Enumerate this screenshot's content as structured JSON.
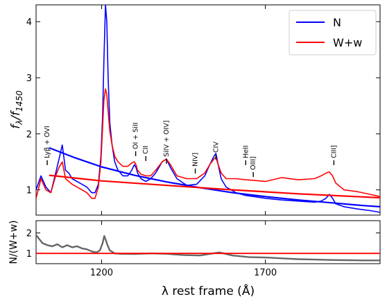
{
  "chart_data": [
    {
      "type": "line",
      "panel": "top",
      "title": "",
      "xlabel": "",
      "ylabel": "f_λ/f_1450",
      "ylabel_main": "f",
      "ylabel_sub1": "λ",
      "ylabel_slash": "/f",
      "ylabel_sub2": "1450",
      "xlim": [
        1000,
        2050
      ],
      "ylim": [
        0.55,
        4.3
      ],
      "x_ticks": [
        1200,
        1700
      ],
      "y_ticks": [
        1,
        2,
        3,
        4
      ],
      "y_tick_labels": [
        "1",
        "2",
        "3",
        "4"
      ],
      "grid": false,
      "legend_position": "top-right",
      "series": [
        {
          "name": "N",
          "color": "#0000ff",
          "x": [
            1000,
            1015,
            1030,
            1045,
            1060,
            1070,
            1080,
            1090,
            1100,
            1110,
            1125,
            1140,
            1155,
            1170,
            1180,
            1190,
            1198,
            1203,
            1207,
            1212,
            1216,
            1220,
            1225,
            1232,
            1240,
            1250,
            1265,
            1280,
            1292,
            1300,
            1305,
            1310,
            1320,
            1335,
            1350,
            1365,
            1385,
            1398,
            1410,
            1430,
            1460,
            1490,
            1515,
            1530,
            1543,
            1549,
            1556,
            1565,
            1580,
            1610,
            1640,
            1665,
            1700,
            1750,
            1800,
            1850,
            1870,
            1885,
            1895,
            1905,
            1915,
            1940,
            1980,
            2020,
            2050
          ],
          "y": [
            1.0,
            1.25,
            1.05,
            0.95,
            1.3,
            1.55,
            1.8,
            1.35,
            1.3,
            1.2,
            1.15,
            1.1,
            1.05,
            0.95,
            0.95,
            1.1,
            1.6,
            2.3,
            3.3,
            4.3,
            4.0,
            3.0,
            2.2,
            1.8,
            1.5,
            1.35,
            1.25,
            1.25,
            1.35,
            1.45,
            1.4,
            1.3,
            1.2,
            1.15,
            1.2,
            1.3,
            1.5,
            1.55,
            1.4,
            1.2,
            1.08,
            1.1,
            1.25,
            1.45,
            1.6,
            1.65,
            1.45,
            1.2,
            1.05,
            0.95,
            0.9,
            0.88,
            0.85,
            0.82,
            0.8,
            0.78,
            0.8,
            0.85,
            0.92,
            0.85,
            0.75,
            0.7,
            0.66,
            0.63,
            0.6
          ]
        },
        {
          "name": "W+w",
          "color": "#ff0000",
          "x": [
            1000,
            1015,
            1030,
            1045,
            1060,
            1070,
            1080,
            1090,
            1100,
            1110,
            1125,
            1140,
            1155,
            1170,
            1180,
            1190,
            1198,
            1203,
            1207,
            1212,
            1216,
            1220,
            1225,
            1232,
            1240,
            1250,
            1265,
            1280,
            1292,
            1300,
            1305,
            1310,
            1320,
            1335,
            1350,
            1365,
            1385,
            1398,
            1410,
            1430,
            1460,
            1490,
            1515,
            1530,
            1543,
            1549,
            1556,
            1565,
            1580,
            1610,
            1640,
            1665,
            1700,
            1750,
            1800,
            1850,
            1870,
            1885,
            1895,
            1905,
            1915,
            1940,
            1980,
            2020,
            2050
          ],
          "y": [
            0.85,
            1.2,
            1.0,
            0.95,
            1.25,
            1.4,
            1.5,
            1.2,
            1.15,
            1.1,
            1.05,
            1.0,
            0.95,
            0.85,
            0.85,
            1.05,
            1.5,
            2.1,
            2.6,
            2.8,
            2.7,
            2.4,
            2.05,
            1.8,
            1.6,
            1.5,
            1.42,
            1.42,
            1.48,
            1.5,
            1.45,
            1.35,
            1.28,
            1.25,
            1.25,
            1.35,
            1.5,
            1.55,
            1.45,
            1.25,
            1.2,
            1.2,
            1.3,
            1.45,
            1.55,
            1.58,
            1.45,
            1.3,
            1.2,
            1.2,
            1.18,
            1.17,
            1.15,
            1.22,
            1.18,
            1.2,
            1.25,
            1.3,
            1.32,
            1.25,
            1.12,
            1.0,
            0.97,
            0.92,
            0.88
          ]
        },
        {
          "name": "N continuum",
          "color": "#0000ff",
          "x": [
            1040,
            1120,
            1200,
            1300,
            1400,
            1500,
            1600,
            1700,
            1800,
            1900,
            2000,
            2050
          ],
          "y": [
            1.75,
            1.57,
            1.41,
            1.26,
            1.14,
            1.04,
            0.95,
            0.88,
            0.82,
            0.77,
            0.72,
            0.7
          ]
        },
        {
          "name": "W+w continuum",
          "color": "#ff0000",
          "x": [
            1040,
            1200,
            1400,
            1600,
            1800,
            2050
          ],
          "y": [
            1.26,
            1.16,
            1.08,
            1.0,
            0.93,
            0.86
          ]
        }
      ],
      "annotations": [
        {
          "label": "Lyβ + OVI",
          "x": 1034
        },
        {
          "label": "OI + SiII",
          "x": 1304
        },
        {
          "label": "CII",
          "x": 1335
        },
        {
          "label": "SiIV + OIV]",
          "x": 1398
        },
        {
          "label": "NIV]",
          "x": 1486
        },
        {
          "label": "CIV",
          "x": 1549
        },
        {
          "label": "HeII",
          "x": 1640
        },
        {
          "label": "OIII]",
          "x": 1663
        },
        {
          "label": "CIII]",
          "x": 1909
        }
      ]
    },
    {
      "type": "line",
      "panel": "bottom",
      "title": "",
      "xlabel": "λ rest frame (Å)",
      "ylabel": "N/(W+w)",
      "xlim": [
        1000,
        2050
      ],
      "ylim": [
        0.5,
        2.6
      ],
      "x_ticks": [
        1200,
        1700
      ],
      "x_tick_labels": [
        "1200",
        "1700"
      ],
      "y_ticks": [
        1,
        2
      ],
      "y_tick_labels": [
        "1",
        "2"
      ],
      "grid": false,
      "series": [
        {
          "name": "ratio",
          "color": "#666666",
          "x": [
            1000,
            1010,
            1020,
            1035,
            1050,
            1065,
            1080,
            1095,
            1110,
            1125,
            1140,
            1155,
            1170,
            1185,
            1195,
            1203,
            1208,
            1213,
            1218,
            1225,
            1240,
            1260,
            1300,
            1350,
            1400,
            1450,
            1500,
            1540,
            1560,
            1600,
            1650,
            1700,
            1750,
            1800,
            1850,
            1900,
            1950,
            2000,
            2050
          ],
          "y": [
            1.9,
            1.7,
            1.5,
            1.4,
            1.35,
            1.45,
            1.3,
            1.4,
            1.3,
            1.35,
            1.25,
            1.2,
            1.1,
            1.05,
            1.15,
            1.5,
            1.85,
            1.65,
            1.4,
            1.15,
            1.0,
            0.98,
            0.97,
            1.0,
            0.98,
            0.92,
            0.9,
            1.0,
            1.05,
            0.9,
            0.82,
            0.8,
            0.76,
            0.72,
            0.7,
            0.68,
            0.67,
            0.66,
            0.66
          ]
        },
        {
          "name": "unity",
          "color": "#ff0000",
          "x": [
            1000,
            2050
          ],
          "y": [
            1,
            1
          ]
        }
      ]
    }
  ]
}
